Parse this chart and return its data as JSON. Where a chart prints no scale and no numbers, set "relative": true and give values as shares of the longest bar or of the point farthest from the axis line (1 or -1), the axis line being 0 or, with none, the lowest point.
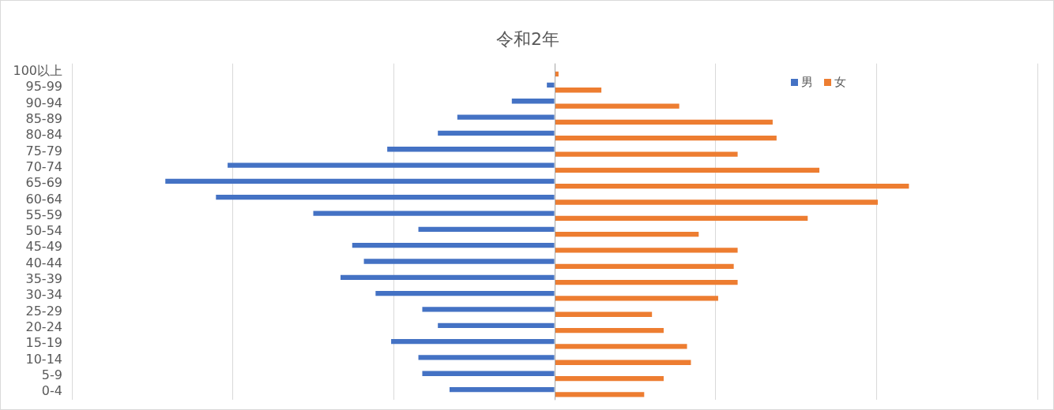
{
  "chart_data": {
    "type": "bar",
    "orientation": "horizontal",
    "relative": true,
    "title": "令和2年",
    "categories": [
      "100以上",
      "95-99",
      "90-94",
      "85-89",
      "80-84",
      "75-79",
      "70-74",
      "65-69",
      "60-64",
      "55-59",
      "50-54",
      "45-49",
      "40-44",
      "35-39",
      "30-34",
      "25-29",
      "20-24",
      "15-19",
      "10-14",
      "5-9",
      "0-4"
    ],
    "series": [
      {
        "name": "男",
        "color": "#4472c4",
        "values": [
          0,
          -0.02,
          -0.11,
          -0.25,
          -0.3,
          -0.43,
          -0.84,
          -1,
          -0.87,
          -0.62,
          -0.35,
          -0.52,
          -0.49,
          -0.55,
          -0.46,
          -0.34,
          -0.3,
          -0.42,
          -0.35,
          -0.34,
          -0.27
        ]
      },
      {
        "name": "女",
        "color": "#ed7d31",
        "values": [
          0.01,
          0.12,
          0.32,
          0.56,
          0.57,
          0.47,
          0.68,
          0.91,
          0.83,
          0.65,
          0.37,
          0.47,
          0.46,
          0.47,
          0.42,
          0.25,
          0.28,
          0.34,
          0.35,
          0.28,
          0.23
        ]
      }
    ],
    "grid": "x",
    "legend": "top right"
  }
}
